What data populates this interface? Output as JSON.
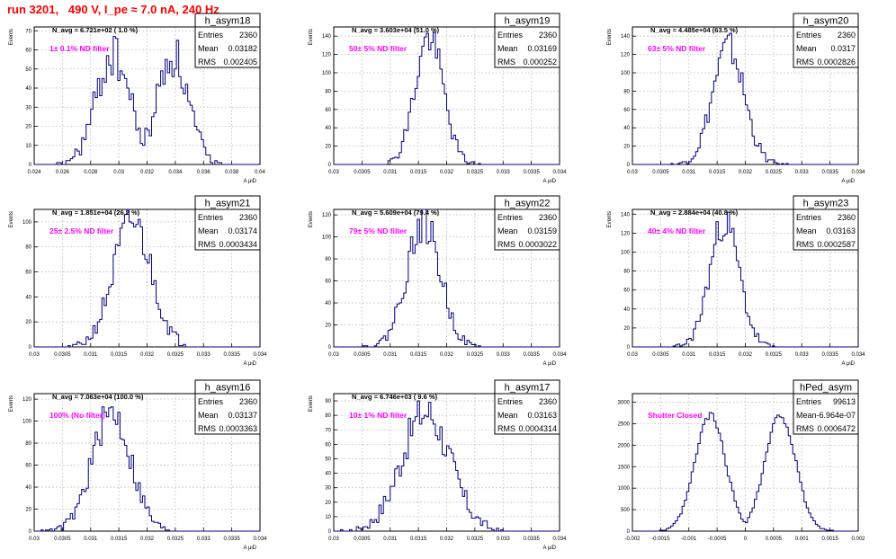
{
  "page": {
    "title": "run 3201,   490 V, I_pe ≈ 7.0 nA, 240 Hz"
  },
  "colors": {
    "line": "#000080",
    "grid": "#c8c8c8",
    "annotation": "#ff00ff",
    "title": "#ff0000",
    "axis": "#000000"
  },
  "chart_data": [
    {
      "type": "histogram",
      "name": "h_asym18",
      "stats": {
        "Entries": "2360",
        "Mean": "0.03182",
        "RMS": "0.002405"
      },
      "navg": "N_avg = 6.721e+02 ( 1.0 %)",
      "filter": "1± 0.1% ND filter",
      "xlim": [
        0.024,
        0.04
      ],
      "ylim": [
        0,
        72
      ],
      "xticks": [
        "0.024",
        "0.026",
        "0.028",
        "0.03",
        "0.032",
        "0.034",
        "0.036",
        "0.038",
        "0.04"
      ],
      "yticks": [
        "0",
        "10",
        "20",
        "30",
        "40",
        "50",
        "60",
        "70"
      ],
      "xlabel": "A μιD",
      "ylabel": "Events",
      "shape": {
        "kind": "double",
        "mean1": 0.0296,
        "sigma1": 0.0012,
        "mean2": 0.0338,
        "sigma2": 0.0011,
        "peak": 57,
        "seed": 18
      }
    },
    {
      "type": "histogram",
      "name": "h_asym19",
      "stats": {
        "Entries": "2360",
        "Mean": "0.03169",
        "RMS": "0.000252"
      },
      "navg": "N_avg = 3.603e+04 (51.0 %)",
      "filter": "50± 5% ND filter",
      "xlim": [
        0.03,
        0.034
      ],
      "ylim": [
        0,
        150
      ],
      "xticks": [
        "0.03",
        "0.0305",
        "0.031",
        "0.0315",
        "0.032",
        "0.0325",
        "0.033",
        "0.0335",
        "0.034"
      ],
      "yticks": [
        "0",
        "20",
        "40",
        "60",
        "80",
        "100",
        "120",
        "140"
      ],
      "xlabel": "A μιD",
      "ylabel": "Events",
      "shape": {
        "kind": "gauss",
        "mean": 0.03169,
        "sigma": 0.000252,
        "peak": 138,
        "seed": 19
      }
    },
    {
      "type": "histogram",
      "name": "h_asym20",
      "stats": {
        "Entries": "2360",
        "Mean": "0.0317",
        "RMS": "0.0002826"
      },
      "navg": "N_avg = 4.485e+04 (63.5 %)",
      "filter": "63± 5% ND filter",
      "xlim": [
        0.03,
        0.034
      ],
      "ylim": [
        0,
        150
      ],
      "xticks": [
        "0.03",
        "0.0305",
        "0.031",
        "0.0315",
        "0.032",
        "0.0325",
        "0.033",
        "0.0335",
        "0.034"
      ],
      "yticks": [
        "0",
        "20",
        "40",
        "60",
        "80",
        "100",
        "120",
        "140"
      ],
      "xlabel": "A μιD",
      "ylabel": "Events",
      "shape": {
        "kind": "gauss",
        "mean": 0.0317,
        "sigma": 0.00028,
        "peak": 128,
        "seed": 20
      }
    },
    {
      "type": "histogram",
      "name": "h_asym21",
      "stats": {
        "Entries": "2360",
        "Mean": "0.03174",
        "RMS": "0.0003434"
      },
      "navg": "N_avg = 1.851e+04 (26.2 %)",
      "filter": "25± 2.5% ND filter",
      "xlim": [
        0.03,
        0.034
      ],
      "ylim": [
        0,
        110
      ],
      "xticks": [
        "0.03",
        "0.0305",
        "0.031",
        "0.0315",
        "0.032",
        "0.0325",
        "0.033",
        "0.0335",
        "0.034"
      ],
      "yticks": [
        "0",
        "20",
        "40",
        "60",
        "80",
        "100"
      ],
      "xlabel": "A μιD",
      "ylabel": "Events",
      "shape": {
        "kind": "gauss",
        "mean": 0.03174,
        "sigma": 0.00034,
        "peak": 100,
        "seed": 21
      }
    },
    {
      "type": "histogram",
      "name": "h_asym22",
      "stats": {
        "Entries": "2360",
        "Mean": "0.03159",
        "RMS": "0.0003022"
      },
      "navg": "N_avg = 5.609e+04 (79.4 %)",
      "filter": "79± 5% ND filter",
      "xlim": [
        0.03,
        0.034
      ],
      "ylim": [
        0,
        125
      ],
      "xticks": [
        "0.03",
        "0.0305",
        "0.031",
        "0.0315",
        "0.032",
        "0.0325",
        "0.033",
        "0.0335",
        "0.034"
      ],
      "yticks": [
        "0",
        "20",
        "40",
        "60",
        "80",
        "100",
        "120"
      ],
      "xlabel": "A μιD",
      "ylabel": "Events",
      "shape": {
        "kind": "gauss",
        "mean": 0.03159,
        "sigma": 0.0003,
        "peak": 112,
        "seed": 22
      }
    },
    {
      "type": "histogram",
      "name": "h_asym23",
      "stats": {
        "Entries": "2360",
        "Mean": "0.03163",
        "RMS": "0.0002587"
      },
      "navg": "N_avg = 2.884e+04 (40.8 %)",
      "filter": "40± 4% ND filter",
      "xlim": [
        0.03,
        0.034
      ],
      "ylim": [
        0,
        145
      ],
      "xticks": [
        "0.03",
        "0.0305",
        "0.031",
        "0.0315",
        "0.032",
        "0.0325",
        "0.033",
        "0.0335",
        "0.034"
      ],
      "yticks": [
        "0",
        "20",
        "40",
        "60",
        "80",
        "100",
        "120",
        "140"
      ],
      "xlabel": "A μιD",
      "ylabel": "Events",
      "shape": {
        "kind": "gauss",
        "mean": 0.03163,
        "sigma": 0.00026,
        "peak": 132,
        "seed": 23
      }
    },
    {
      "type": "histogram",
      "name": "h_asym16",
      "stats": {
        "Entries": "2360",
        "Mean": "0.03137",
        "RMS": "0.0003363"
      },
      "navg": "N_avg = 7.063e+04 (100.0 %)",
      "filter": "100% (No filter)",
      "xlim": [
        0.03,
        0.034
      ],
      "ylim": [
        0,
        125
      ],
      "xticks": [
        "0.03",
        "0.0305",
        "0.031",
        "0.0315",
        "0.032",
        "0.0325",
        "0.033",
        "0.0335",
        "0.034"
      ],
      "yticks": [
        "0",
        "20",
        "40",
        "60",
        "80",
        "100",
        "120"
      ],
      "xlabel": "A μιD",
      "ylabel": "Events",
      "shape": {
        "kind": "gauss",
        "mean": 0.03137,
        "sigma": 0.00034,
        "peak": 108,
        "seed": 16
      }
    },
    {
      "type": "histogram",
      "name": "h_asym17",
      "stats": {
        "Entries": "2360",
        "Mean": "0.03163",
        "RMS": "0.0004314"
      },
      "navg": "N_avg = 6.746e+03 ( 9.6 %)",
      "filter": "10± 1% ND filter",
      "xlim": [
        0.03,
        0.034
      ],
      "ylim": [
        0,
        95
      ],
      "xticks": [
        "0.03",
        "0.0305",
        "0.031",
        "0.0315",
        "0.032",
        "0.0325",
        "0.033",
        "0.0335",
        "0.034"
      ],
      "yticks": [
        "0",
        "10",
        "20",
        "30",
        "40",
        "50",
        "60",
        "70",
        "80",
        "90"
      ],
      "xlabel": "A μιD",
      "ylabel": "Events",
      "shape": {
        "kind": "gauss",
        "mean": 0.03163,
        "sigma": 0.00043,
        "peak": 82,
        "seed": 17
      }
    },
    {
      "type": "histogram",
      "name": "hPed_asym",
      "stats": {
        "Entries": "99613",
        "Mean": "-6.964e-07",
        "RMS": "0.0006472"
      },
      "navg": "",
      "filter": "Shutter Closed",
      "xlim": [
        -0.002,
        0.002
      ],
      "ylim": [
        0,
        3200
      ],
      "xticks": [
        "-0.002",
        "-0.0015",
        "-0.001",
        "-0.0005",
        "0",
        "0.0005",
        "0.001",
        "0.0015",
        "0.002"
      ],
      "yticks": [
        "0",
        "500",
        "1000",
        "1500",
        "2000",
        "2500",
        "3000"
      ],
      "xlabel": "",
      "ylabel": "",
      "shape": {
        "kind": "double",
        "mean1": -0.00062,
        "sigma1": 0.00027,
        "mean2": 0.00062,
        "sigma2": 0.00027,
        "peak": 2700,
        "seed": 99
      }
    }
  ]
}
